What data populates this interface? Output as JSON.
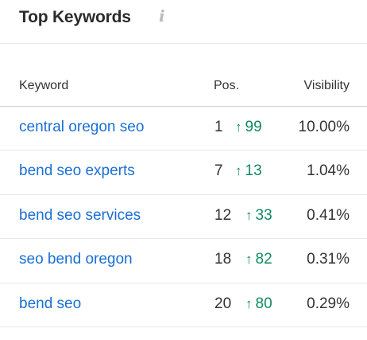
{
  "header": {
    "title": "Top Keywords",
    "info_icon": "info-icon"
  },
  "table": {
    "columns": {
      "keyword": "Keyword",
      "pos": "Pos.",
      "visibility": "Visibility"
    },
    "rows": [
      {
        "keyword": "central oregon seo",
        "pos": "1",
        "arrow": "↑",
        "change": "99",
        "visibility": "10.00%"
      },
      {
        "keyword": "bend seo experts",
        "pos": "7",
        "arrow": "↑",
        "change": "13",
        "visibility": "1.04%"
      },
      {
        "keyword": "bend seo services",
        "pos": "12",
        "arrow": "↑",
        "change": "33",
        "visibility": "0.41%"
      },
      {
        "keyword": "seo bend oregon",
        "pos": "18",
        "arrow": "↑",
        "change": "82",
        "visibility": "0.31%"
      },
      {
        "keyword": "bend seo",
        "pos": "20",
        "arrow": "↑",
        "change": "80",
        "visibility": "0.29%"
      }
    ]
  },
  "colors": {
    "link": "#1a6fd4",
    "positive_change": "#0f8a5f"
  }
}
